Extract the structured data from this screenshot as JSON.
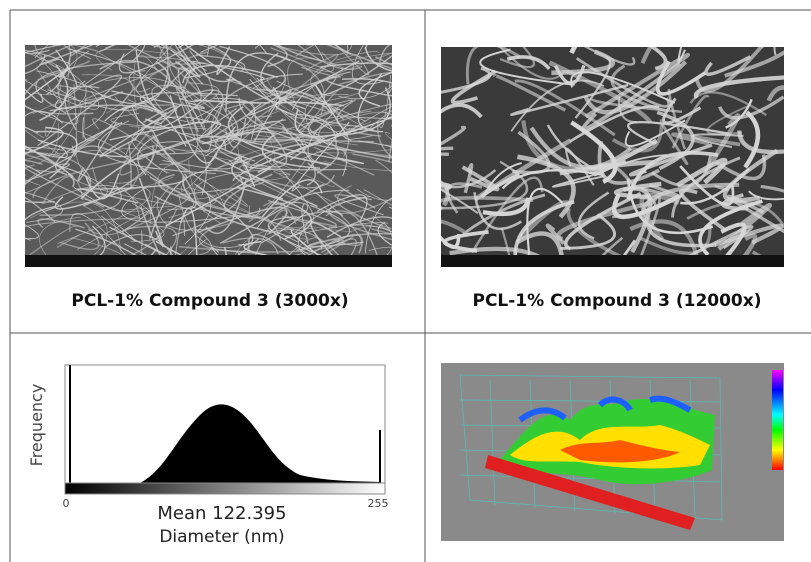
{
  "panels": [
    {
      "caption": "PCL-1% Compound 3 (3000x)"
    },
    {
      "caption": "PCL-1% Compound 3 (12000x)"
    },
    {
      "y_label": "Frequency",
      "range_start": 0,
      "range_end": 255,
      "mean_label": "Mean 122.395",
      "x_label": "Diameter (nm)"
    }
  ]
}
